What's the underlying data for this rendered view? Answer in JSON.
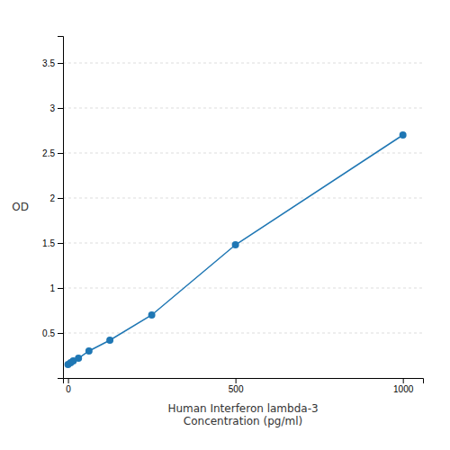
{
  "chart_data": {
    "type": "line",
    "xlabel": "Human Interferon lambda-3\nConcentration (pg/ml)",
    "ylabel": "OD",
    "x": [
      0,
      7.8,
      15.6,
      31.25,
      62.5,
      125,
      250,
      500,
      1000
    ],
    "values": [
      0.15,
      0.17,
      0.19,
      0.22,
      0.3,
      0.42,
      0.7,
      1.48,
      2.7
    ],
    "marker": "circle",
    "xlim": [
      -15,
      1060
    ],
    "ylim": [
      0,
      3.8
    ],
    "xticks": [
      0,
      500,
      1000
    ],
    "yticks": [
      0.5,
      1,
      1.5,
      2,
      2.5,
      3,
      3.5
    ],
    "grid": true
  }
}
